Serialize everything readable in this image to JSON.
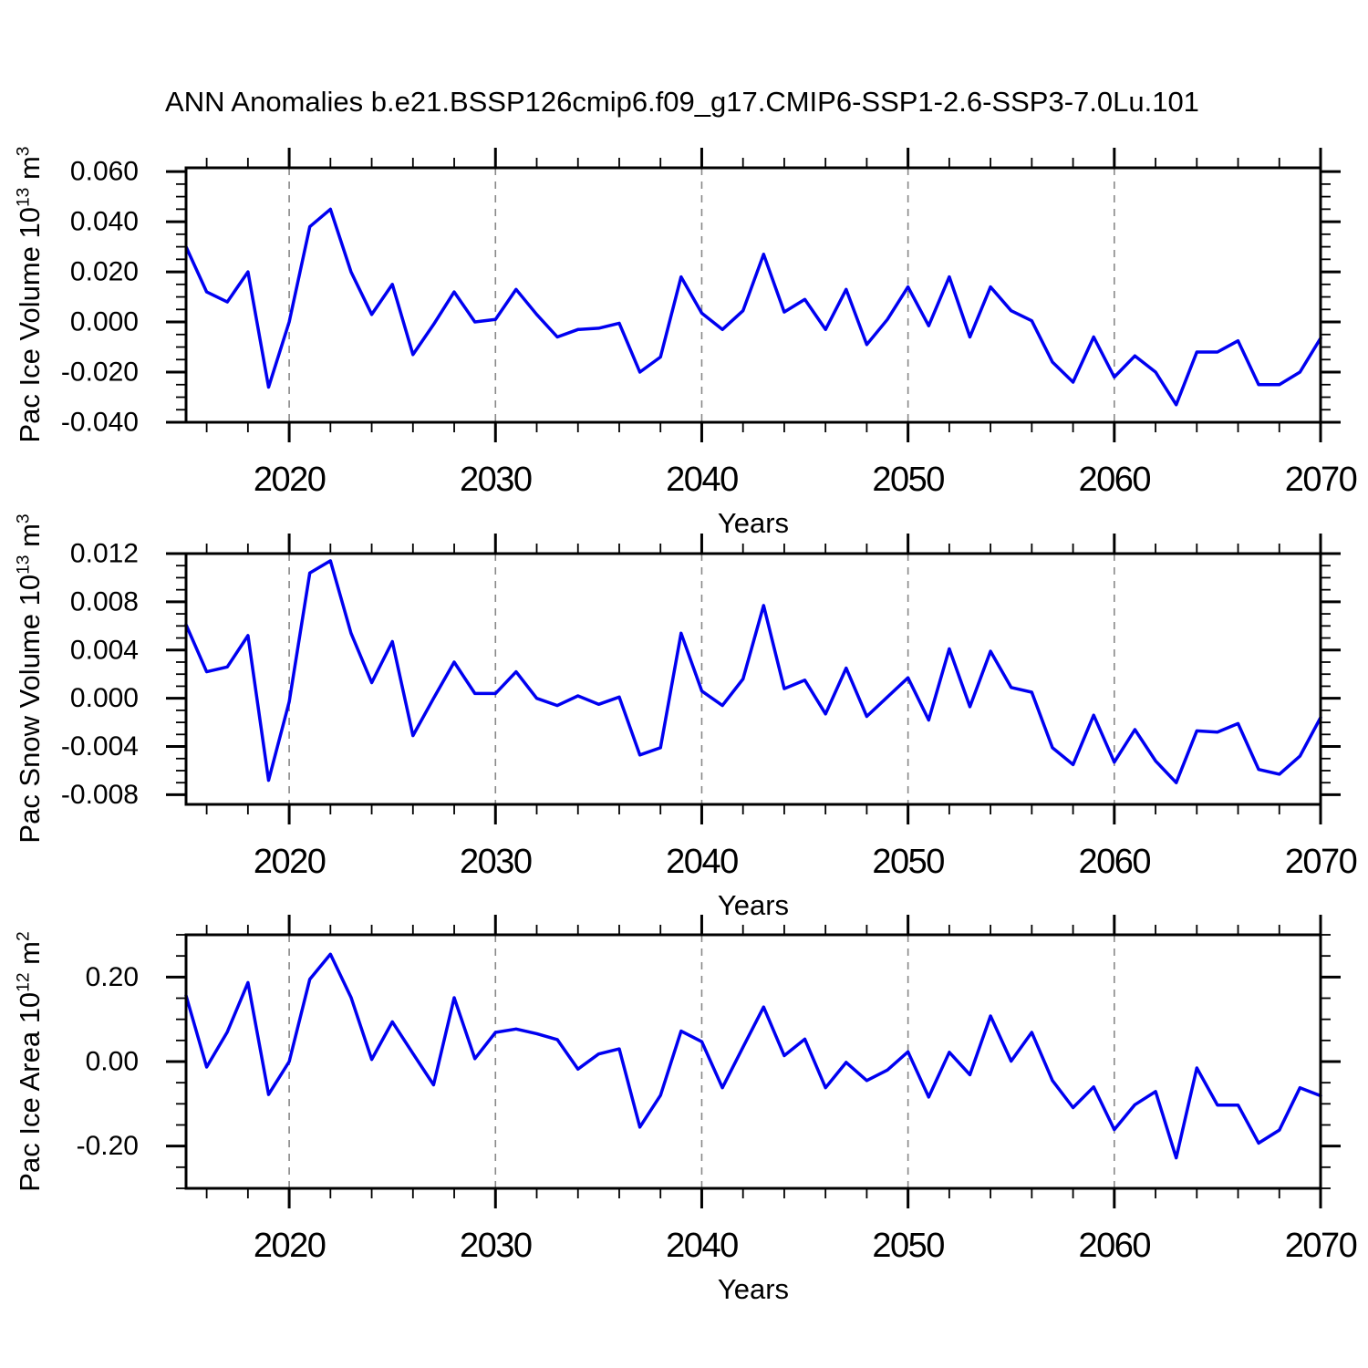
{
  "title": "ANN Anomalies b.e21.BSSP126cmip6.f09_g17.CMIP6-SSP1-2.6-SSP3-7.0Lu.101",
  "colors": {
    "line": "#0000f0",
    "grid": "#888888",
    "axis": "#000000"
  },
  "chart_data": [
    {
      "type": "line",
      "name": "pac-ice-volume",
      "ylabel_pre": "Pac Ice Volume 10",
      "ylabel_sup": "13",
      "ylabel_mid": " m",
      "ylabel_sup2": "3",
      "xlabel": "Years",
      "x_start": 2015,
      "x_end": 2070,
      "xticks": [
        2020,
        2030,
        2040,
        2050,
        2060,
        2070
      ],
      "x_minor_step": 2,
      "gridlines_x": [
        2020,
        2030,
        2040,
        2050,
        2060
      ],
      "ytick_labels": [
        "0.060",
        "0.040",
        "0.020",
        "0.000",
        "-0.020",
        "-0.040"
      ],
      "ytick_values": [
        0.06,
        0.04,
        0.02,
        0.0,
        -0.02,
        -0.04
      ],
      "y_minor_step": 0.005,
      "ylim": [
        -0.04,
        0.0615
      ],
      "legend": "none",
      "grid": "vertical-dashed",
      "values": [
        0.03,
        0.012,
        0.008,
        0.02,
        -0.026,
        0.0,
        0.038,
        0.045,
        0.02,
        0.003,
        0.015,
        -0.013,
        -0.001,
        0.012,
        0.0,
        0.001,
        0.013,
        0.003,
        -0.006,
        -0.003,
        -0.0025,
        -0.0005,
        -0.02,
        -0.014,
        0.018,
        0.0035,
        -0.003,
        0.0045,
        0.027,
        0.004,
        0.009,
        -0.003,
        0.013,
        -0.009,
        0.001,
        0.014,
        -0.0015,
        0.018,
        -0.006,
        0.014,
        0.0045,
        0.0005,
        -0.016,
        -0.024,
        -0.006,
        -0.022,
        -0.0135,
        -0.02,
        -0.033,
        -0.012,
        -0.012,
        -0.0075,
        -0.025,
        -0.025,
        -0.02,
        -0.0065
      ]
    },
    {
      "type": "line",
      "name": "pac-snow-volume",
      "ylabel_pre": "Pac Snow Volume 10",
      "ylabel_sup": "13",
      "ylabel_mid": " m",
      "ylabel_sup2": "3",
      "xlabel": "Years",
      "x_start": 2015,
      "x_end": 2070,
      "xticks": [
        2020,
        2030,
        2040,
        2050,
        2060,
        2070
      ],
      "x_minor_step": 2,
      "gridlines_x": [
        2020,
        2030,
        2040,
        2050,
        2060
      ],
      "ytick_labels": [
        "0.012",
        "0.008",
        "0.004",
        "0.000",
        "-0.004",
        "-0.008"
      ],
      "ytick_values": [
        0.012,
        0.008,
        0.004,
        0.0,
        -0.004,
        -0.008
      ],
      "y_minor_step": 0.001,
      "ylim": [
        -0.0088,
        0.012
      ],
      "legend": "none",
      "grid": "vertical-dashed",
      "values": [
        0.0061,
        0.0022,
        0.0026,
        0.0052,
        -0.0068,
        -0.0003,
        0.0104,
        0.0114,
        0.0054,
        0.0013,
        0.0047,
        -0.0031,
        0.0,
        0.003,
        0.0004,
        0.0004,
        0.0022,
        0.0,
        -0.0006,
        0.0002,
        -0.0005,
        0.0001,
        -0.0047,
        -0.0041,
        0.0054,
        0.0006,
        -0.0006,
        0.0016,
        0.0077,
        0.0008,
        0.0015,
        -0.0013,
        0.0025,
        -0.0015,
        0.0001,
        0.0017,
        -0.0018,
        0.0041,
        -0.0007,
        0.0039,
        0.0009,
        0.0005,
        -0.0041,
        -0.0055,
        -0.0014,
        -0.0053,
        -0.0026,
        -0.0052,
        -0.007,
        -0.0027,
        -0.0028,
        -0.0021,
        -0.0059,
        -0.0063,
        -0.0048,
        -0.0016
      ]
    },
    {
      "type": "line",
      "name": "pac-ice-area",
      "ylabel_pre": "Pac Ice Area 10",
      "ylabel_sup": "12",
      "ylabel_mid": " m",
      "ylabel_sup2": "2",
      "xlabel": "Years",
      "x_start": 2015,
      "x_end": 2070,
      "xticks": [
        2020,
        2030,
        2040,
        2050,
        2060,
        2070
      ],
      "x_minor_step": 2,
      "gridlines_x": [
        2020,
        2030,
        2040,
        2050,
        2060
      ],
      "ytick_labels": [
        "0.20",
        "0.00",
        "-0.20"
      ],
      "ytick_values": [
        0.2,
        0.0,
        -0.2
      ],
      "y_minor_step": 0.05,
      "ylim": [
        -0.3,
        0.3
      ],
      "legend": "none",
      "grid": "vertical-dashed",
      "values": [
        0.156,
        -0.013,
        0.07,
        0.187,
        -0.078,
        0.0,
        0.195,
        0.254,
        0.152,
        0.005,
        0.094,
        0.019,
        -0.055,
        0.151,
        0.007,
        0.069,
        0.077,
        0.066,
        0.052,
        -0.018,
        0.018,
        0.03,
        -0.155,
        -0.08,
        0.072,
        0.047,
        -0.062,
        0.034,
        0.129,
        0.014,
        0.053,
        -0.062,
        -0.002,
        -0.045,
        -0.02,
        0.023,
        -0.084,
        0.022,
        -0.031,
        0.108,
        0.001,
        0.069,
        -0.045,
        -0.109,
        -0.06,
        -0.161,
        -0.102,
        -0.071,
        -0.228,
        -0.015,
        -0.103,
        -0.103,
        -0.193,
        -0.162,
        -0.062,
        -0.081
      ]
    }
  ]
}
